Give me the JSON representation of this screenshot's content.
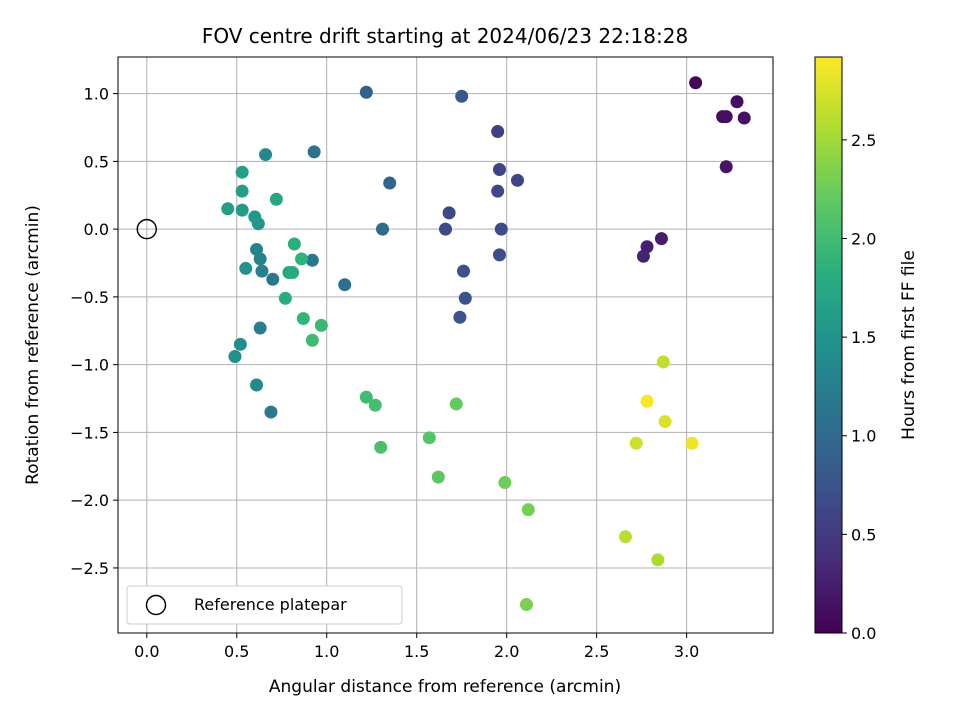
{
  "chart_data": {
    "type": "scatter",
    "title": "FOV centre drift starting at 2024/06/23 22:18:28",
    "xlabel": "Angular distance from reference (arcmin)",
    "ylabel": "Rotation from reference (arcmin)",
    "xlim": [
      -0.16,
      3.48
    ],
    "ylim": [
      -2.98,
      1.27
    ],
    "xticks": [
      "0.0",
      "0.5",
      "1.0",
      "1.5",
      "2.0",
      "2.5",
      "3.0"
    ],
    "xtick_values": [
      0.0,
      0.5,
      1.0,
      1.5,
      2.0,
      2.5,
      3.0
    ],
    "yticks": [
      "1.0",
      "0.5",
      "0.0",
      "−0.5",
      "−1.0",
      "−1.5",
      "−2.0",
      "−2.5"
    ],
    "ytick_values": [
      1.0,
      0.5,
      0.0,
      -0.5,
      -1.0,
      -1.5,
      -2.0,
      -2.5
    ],
    "grid": true,
    "legend": {
      "label": "Reference platepar",
      "placement": "lower-left"
    },
    "reference_point": {
      "x": 0.0,
      "y": 0.0
    },
    "colorbar": {
      "label": "Hours from first FF file",
      "colormap": "viridis",
      "range": [
        0.0,
        2.92
      ],
      "ticks": [
        "0.0",
        "0.5",
        "1.0",
        "1.5",
        "2.0",
        "2.5"
      ],
      "tick_values": [
        0.0,
        0.5,
        1.0,
        1.5,
        2.0,
        2.5
      ]
    },
    "points": [
      {
        "x": 3.05,
        "y": 1.08,
        "h": 0.05
      },
      {
        "x": 3.2,
        "y": 0.83,
        "h": 0.08
      },
      {
        "x": 3.28,
        "y": 0.94,
        "h": 0.1
      },
      {
        "x": 3.22,
        "y": 0.83,
        "h": 0.12
      },
      {
        "x": 3.32,
        "y": 0.82,
        "h": 0.15
      },
      {
        "x": 3.22,
        "y": 0.46,
        "h": 0.17
      },
      {
        "x": 2.86,
        "y": -0.07,
        "h": 0.22
      },
      {
        "x": 2.78,
        "y": -0.13,
        "h": 0.26
      },
      {
        "x": 2.76,
        "y": -0.2,
        "h": 0.28
      },
      {
        "x": 1.95,
        "y": 0.72,
        "h": 0.55
      },
      {
        "x": 1.96,
        "y": 0.44,
        "h": 0.58
      },
      {
        "x": 2.06,
        "y": 0.36,
        "h": 0.6
      },
      {
        "x": 1.95,
        "y": 0.28,
        "h": 0.62
      },
      {
        "x": 1.68,
        "y": 0.12,
        "h": 0.64
      },
      {
        "x": 1.66,
        "y": 0.0,
        "h": 0.66
      },
      {
        "x": 1.97,
        "y": 0.0,
        "h": 0.68
      },
      {
        "x": 1.96,
        "y": -0.19,
        "h": 0.7
      },
      {
        "x": 1.76,
        "y": -0.31,
        "h": 0.72
      },
      {
        "x": 1.77,
        "y": -0.51,
        "h": 0.74
      },
      {
        "x": 1.74,
        "y": -0.65,
        "h": 0.76
      },
      {
        "x": 1.75,
        "y": 0.98,
        "h": 0.8
      },
      {
        "x": 1.22,
        "y": 1.01,
        "h": 0.9
      },
      {
        "x": 1.35,
        "y": 0.34,
        "h": 0.95
      },
      {
        "x": 1.31,
        "y": 0.0,
        "h": 1.0
      },
      {
        "x": 1.1,
        "y": -0.41,
        "h": 1.05
      },
      {
        "x": 0.93,
        "y": 0.57,
        "h": 1.08
      },
      {
        "x": 0.92,
        "y": -0.23,
        "h": 1.12
      },
      {
        "x": 0.7,
        "y": -0.37,
        "h": 1.16
      },
      {
        "x": 0.69,
        "y": -1.35,
        "h": 1.2
      },
      {
        "x": 0.63,
        "y": -0.73,
        "h": 1.24
      },
      {
        "x": 0.64,
        "y": -0.31,
        "h": 1.28
      },
      {
        "x": 0.63,
        "y": -0.22,
        "h": 1.3
      },
      {
        "x": 0.61,
        "y": -0.15,
        "h": 1.32
      },
      {
        "x": 0.66,
        "y": 0.55,
        "h": 1.35
      },
      {
        "x": 0.61,
        "y": -1.15,
        "h": 1.38
      },
      {
        "x": 0.52,
        "y": -0.85,
        "h": 1.42
      },
      {
        "x": 0.49,
        "y": -0.94,
        "h": 1.46
      },
      {
        "x": 0.55,
        "y": -0.29,
        "h": 1.5
      },
      {
        "x": 0.62,
        "y": 0.04,
        "h": 1.52
      },
      {
        "x": 0.6,
        "y": 0.09,
        "h": 1.55
      },
      {
        "x": 0.53,
        "y": 0.14,
        "h": 1.58
      },
      {
        "x": 0.45,
        "y": 0.15,
        "h": 1.6
      },
      {
        "x": 0.53,
        "y": 0.28,
        "h": 1.62
      },
      {
        "x": 0.53,
        "y": 0.42,
        "h": 1.64
      },
      {
        "x": 0.72,
        "y": 0.22,
        "h": 1.72
      },
      {
        "x": 0.79,
        "y": -0.32,
        "h": 1.74
      },
      {
        "x": 0.81,
        "y": -0.32,
        "h": 1.76
      },
      {
        "x": 0.77,
        "y": -0.51,
        "h": 1.8
      },
      {
        "x": 0.82,
        "y": -0.11,
        "h": 1.84
      },
      {
        "x": 0.86,
        "y": -0.22,
        "h": 1.88
      },
      {
        "x": 0.87,
        "y": -0.66,
        "h": 1.9
      },
      {
        "x": 0.97,
        "y": -0.71,
        "h": 1.95
      },
      {
        "x": 0.92,
        "y": -0.82,
        "h": 1.98
      },
      {
        "x": 1.22,
        "y": -1.24,
        "h": 2.0
      },
      {
        "x": 1.27,
        "y": -1.3,
        "h": 2.03
      },
      {
        "x": 1.3,
        "y": -1.61,
        "h": 2.06
      },
      {
        "x": 1.57,
        "y": -1.54,
        "h": 2.12
      },
      {
        "x": 1.62,
        "y": -1.83,
        "h": 2.16
      },
      {
        "x": 1.72,
        "y": -1.29,
        "h": 2.2
      },
      {
        "x": 1.99,
        "y": -1.87,
        "h": 2.26
      },
      {
        "x": 2.12,
        "y": -2.07,
        "h": 2.3
      },
      {
        "x": 2.11,
        "y": -2.77,
        "h": 2.32
      },
      {
        "x": 2.84,
        "y": -2.44,
        "h": 2.55
      },
      {
        "x": 2.66,
        "y": -2.27,
        "h": 2.6
      },
      {
        "x": 2.87,
        "y": -0.98,
        "h": 2.64
      },
      {
        "x": 2.72,
        "y": -1.58,
        "h": 2.7
      },
      {
        "x": 2.88,
        "y": -1.42,
        "h": 2.75
      },
      {
        "x": 3.03,
        "y": -1.58,
        "h": 2.85
      },
      {
        "x": 2.78,
        "y": -1.27,
        "h": 2.9
      }
    ]
  }
}
